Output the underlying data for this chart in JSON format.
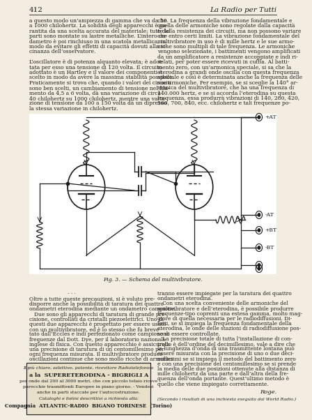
{
  "page_number": "412",
  "journal_title": "La Radio per Tutti",
  "bg_color": "#f2ede0",
  "text_color": "#1a1a1a",
  "col1_text": [
    "a questo modo un’ampiezza di gamma che va da 50",
    "a 1000 chilohertz. La solidità degli apparecchi è ga-",
    "rantita da una scelta accurata del materiale; tutte le",
    "parti sono montate su lastre metalliche. L’intero on-",
    "dametro è poi rinchiuso in una scatola metallica, in",
    "modo da evitare gli effetti di capacità dovuti alla vi-",
    "cinanza dell’osservatore.",
    "",
    "L’oscillatore è di potenza alquanto elevata; è adot-",
    "tata per esso una tensione di 120 volta. Il circuito",
    "adottato è un Hartley e il valore dei componenti è",
    "scelto in modo da avere la massima stabilità possibile.",
    "Praticamente si trova che, quando i valori dei circuiti",
    "sono ben scelti, un cambiamento di tensione nel fila-",
    "mento da 4,5 a 6 volta, dà una variazione di circa",
    "40 chilohertz su 1000 chilohertz, mentre una varia-",
    "zione di tensione da 100 a 150 volta dà un dipresso",
    "la stessa variazione in chilohertz."
  ],
  "col2_text": [
    "che. La frequenza della vibrazione fondamentale e",
    "quella delle armoniche sono regolate dalla capacità",
    "e dalla resistenza dei circuiti, ma non possono variare",
    "che entro certi limiti. La vibrazione fondamentale del",
    "multivibratore in uso è di mille hertz e le sue armo-",
    "niche sono multipli di tale frequenza. Le armoniche",
    "vengono selezionate, i battimenti vengono amplificati",
    "da un amplificatore a resistenze accoppiate e indi ri-",
    "velati, per poter essere ricevuti in cuffia. Al batti-",
    "mento zero, con un’armonica speciale, si sa che la",
    "eterodina a grandi onde oscilla con questa frequenza",
    "speciale e così è determinata anche la frequenza delle",
    "sue armoniche. Per esempio, se si sceglie la 140° ar-",
    "monica del multivibratore, che ha una frequenza di",
    "140.000 hertz, e se si accorda l’eterodina su questa",
    "frequenza, essa produrrà vibrazioni di 140, 280, 420,",
    "560, 700, 840, ecc. chilohertz e tali frequenze po-"
  ],
  "fig_caption": "Fig. 3. — Schema del multivibratore.",
  "col3_text_left": [
    "Oltre a tutte queste precauzioni, si è voluto pre-",
    "disporre anche la possibilità di taratura dei quattro",
    "ondametri eterodina mediante un ondametro campione.",
    "   Due sono gli apparecchi di taratura di grande pre-",
    "cisione, controllati da cristalli piezoelettrici. Uno di",
    "questi due apparecchi è progettato per essere usato",
    "con un multivibratore, ed è lo stesso che fu breve-",
    "tato dall’Eccles e indi perfezionato come campione di",
    "frequenze dal Dott. Dye, per il laboratorio nazionale",
    "inglese di fisica. Con questo apparecchio è assicurata",
    "una precisione di taratura di un centomillesimo per",
    "ogni frequenza misurata. Il multivibratore produce",
    "oscillazioni continue che sono mollo ricche di armonici"
  ],
  "col3_text_right": [
    "tranno essere impiegate per la taratura dei quattro",
    "ondametri eterodina.",
    "   Con una scelta conveniente delle armoniche del",
    "multivibratore e dell’eterodina, è possibile produrre",
    "frequenze-tipo coprenti una estesa gamma, molto mag-",
    "giore di quella necessaria per le radiodiffusioni. Di-",
    "fatti, se si impiega la frequenza fondamentale della",
    "eterodina, le onde delle stazioni di radiodiffusione pos-",
    "sono essere controllate.",
    "   La precisione totale di tutta l’installazione di con-",
    "trollo è dell’ordine del decimillesimo, vale a dire che",
    "la lunghezza d’onda di una trasmittente lontana può",
    "essere misurata con la precisione di uno o due deci-",
    "millesimi se si impiega il metodo del battimento zero",
    "e con una precisione del centomillesimo se si prende",
    "la media delle due posizioni ottenute alla distanza di",
    "mille chilohertz da una parte e dall’altra della fre-",
    "quenza dell’onda portante. Quest’ultimo metodo è",
    "quello che viene impiegato correttamente."
  ],
  "author_sig": "Roge.",
  "footnote": "(Secondo i risultati di una inchiesta eseguita dal World Radio.)",
  "ad_line1_italic": "Il più chiaro, selettivo, potente, ricevitore Radiotelefonico",
  "ad_line2_bold": "a la  SUPERETERODINA - BIGRIGLI A",
  "ad_line3": "per onde dal 200 al 3000 metri, che con piccolo telaio riceve",
  "ad_line4": "parecchie trasmittenti Europee in piano giorno. - Vendesi",
  "ad_line5": "anche in parti staccate per l’autocostruzione.",
  "ad_line6_italic": "Cataloghi e listini descrittivi a richiesta alla:",
  "ad_line7_bold": "Compagnia  ATLANTIC-RADIO  BIGANO TORINESE  (Torino)"
}
